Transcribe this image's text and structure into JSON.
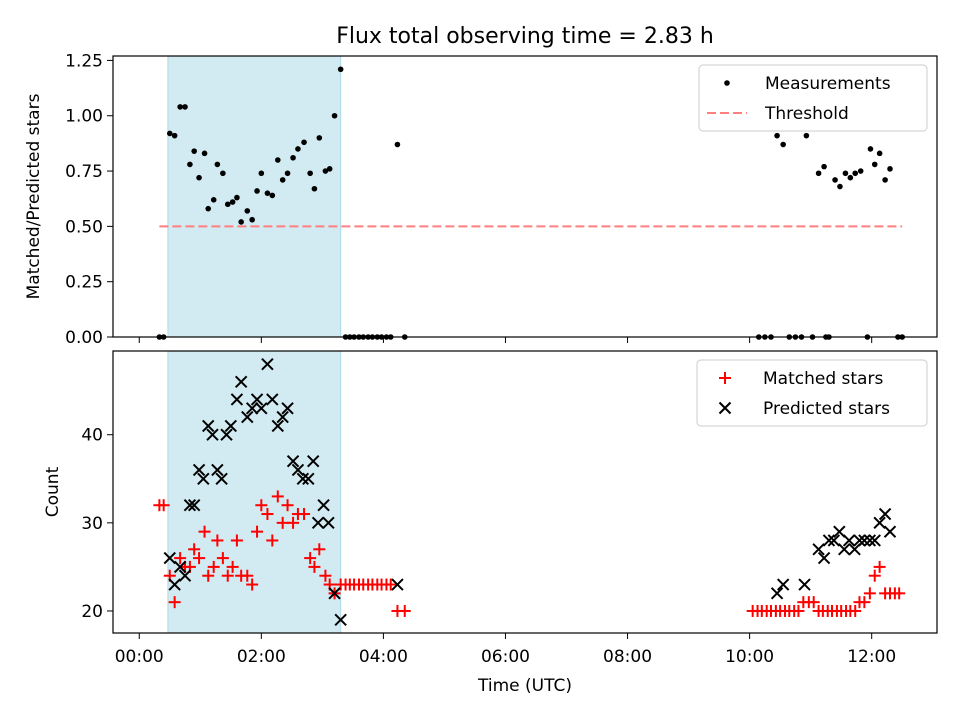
{
  "title": "Flux total observing time = 2.83 h",
  "colors": {
    "measurement": "#000000",
    "threshold": "#ff7f7f",
    "matched": "#ff0000",
    "predicted": "#000000",
    "shade": "#add8e6"
  },
  "chart_data": [
    {
      "type": "scatter",
      "panel": "top",
      "xlabel": "",
      "ylabel": "Matched/Predicted stars",
      "xlim_hours": [
        -0.43,
        13.07
      ],
      "ylim": [
        0,
        1.27
      ],
      "yticks": [
        "0.00",
        "0.25",
        "0.50",
        "0.75",
        "1.00",
        "1.25"
      ],
      "shaded_span_hours": [
        0.47,
        3.3
      ],
      "legend": {
        "placement": "top-right",
        "entries": [
          "Measurements",
          "Threshold"
        ]
      },
      "threshold": {
        "value": 0.5,
        "x_hours": [
          0.33,
          12.5
        ]
      },
      "series": [
        {
          "name": "Measurements",
          "marker": "dot",
          "points": [
            [
              0.33,
              0
            ],
            [
              0.4,
              0
            ],
            [
              0.5,
              0.92
            ],
            [
              0.58,
              0.91
            ],
            [
              0.67,
              1.04
            ],
            [
              0.75,
              1.04
            ],
            [
              0.83,
              0.78
            ],
            [
              0.9,
              0.84
            ],
            [
              0.98,
              0.72
            ],
            [
              1.07,
              0.83
            ],
            [
              1.13,
              0.58
            ],
            [
              1.22,
              0.62
            ],
            [
              1.28,
              0.78
            ],
            [
              1.37,
              0.74
            ],
            [
              1.45,
              0.6
            ],
            [
              1.53,
              0.61
            ],
            [
              1.6,
              0.63
            ],
            [
              1.67,
              0.52
            ],
            [
              1.77,
              0.57
            ],
            [
              1.85,
              0.53
            ],
            [
              1.93,
              0.66
            ],
            [
              2.0,
              0.74
            ],
            [
              2.1,
              0.65
            ],
            [
              2.18,
              0.64
            ],
            [
              2.27,
              0.8
            ],
            [
              2.35,
              0.71
            ],
            [
              2.43,
              0.74
            ],
            [
              2.52,
              0.81
            ],
            [
              2.6,
              0.85
            ],
            [
              2.7,
              0.88
            ],
            [
              2.8,
              0.74
            ],
            [
              2.87,
              0.67
            ],
            [
              2.95,
              0.9
            ],
            [
              3.05,
              0.75
            ],
            [
              3.12,
              0.76
            ],
            [
              3.2,
              1.0
            ],
            [
              3.3,
              1.21
            ],
            [
              3.38,
              0
            ],
            [
              3.45,
              0
            ],
            [
              3.52,
              0
            ],
            [
              3.6,
              0
            ],
            [
              3.67,
              0
            ],
            [
              3.75,
              0
            ],
            [
              3.82,
              0
            ],
            [
              3.9,
              0
            ],
            [
              3.97,
              0
            ],
            [
              4.05,
              0
            ],
            [
              4.12,
              0
            ],
            [
              4.23,
              0.87
            ],
            [
              4.35,
              0
            ],
            [
              10.15,
              0
            ],
            [
              10.25,
              0
            ],
            [
              10.35,
              0
            ],
            [
              10.45,
              0.91
            ],
            [
              10.55,
              0.87
            ],
            [
              10.65,
              0
            ],
            [
              10.75,
              0
            ],
            [
              10.85,
              0
            ],
            [
              10.93,
              0.91
            ],
            [
              11.03,
              0
            ],
            [
              11.25,
              0
            ],
            [
              11.13,
              0.74
            ],
            [
              11.22,
              0.77
            ],
            [
              11.3,
              0
            ],
            [
              11.4,
              0.71
            ],
            [
              11.48,
              0.68
            ],
            [
              11.57,
              0.74
            ],
            [
              11.65,
              0.72
            ],
            [
              11.73,
              0.74
            ],
            [
              11.82,
              0.75
            ],
            [
              11.93,
              0
            ],
            [
              11.98,
              0.85
            ],
            [
              12.05,
              0.78
            ],
            [
              12.13,
              0.83
            ],
            [
              12.22,
              0.71
            ],
            [
              12.3,
              0.76
            ],
            [
              12.43,
              0
            ],
            [
              12.5,
              0
            ]
          ]
        }
      ]
    },
    {
      "type": "scatter",
      "panel": "bottom",
      "xlabel": "Time (UTC)",
      "ylabel": "Count",
      "xlim_hours": [
        -0.43,
        13.07
      ],
      "ylim": [
        17.5,
        49.5
      ],
      "yticks": [
        "20",
        "30",
        "40"
      ],
      "xticks": [
        "00:00",
        "02:00",
        "04:00",
        "06:00",
        "08:00",
        "10:00",
        "12:00"
      ],
      "shaded_span_hours": [
        0.47,
        3.3
      ],
      "legend": {
        "placement": "top-right",
        "entries": [
          "Matched stars",
          "Predicted stars"
        ]
      },
      "series": [
        {
          "name": "Matched stars",
          "marker": "plus",
          "points": [
            [
              0.33,
              32
            ],
            [
              0.4,
              32
            ],
            [
              0.5,
              24
            ],
            [
              0.58,
              21
            ],
            [
              0.67,
              26
            ],
            [
              0.75,
              25
            ],
            [
              0.83,
              25
            ],
            [
              0.9,
              27
            ],
            [
              0.98,
              26
            ],
            [
              1.07,
              29
            ],
            [
              1.13,
              24
            ],
            [
              1.22,
              25
            ],
            [
              1.28,
              28
            ],
            [
              1.37,
              26
            ],
            [
              1.45,
              24
            ],
            [
              1.53,
              25
            ],
            [
              1.6,
              28
            ],
            [
              1.67,
              24
            ],
            [
              1.77,
              24
            ],
            [
              1.85,
              23
            ],
            [
              1.93,
              29
            ],
            [
              2.0,
              32
            ],
            [
              2.1,
              31
            ],
            [
              2.18,
              28
            ],
            [
              2.27,
              33
            ],
            [
              2.35,
              30
            ],
            [
              2.43,
              32
            ],
            [
              2.52,
              30
            ],
            [
              2.6,
              31
            ],
            [
              2.7,
              31
            ],
            [
              2.8,
              26
            ],
            [
              2.87,
              25
            ],
            [
              2.95,
              27
            ],
            [
              3.05,
              24
            ],
            [
              3.12,
              23
            ],
            [
              3.2,
              22
            ],
            [
              3.3,
              23
            ],
            [
              3.38,
              23
            ],
            [
              3.45,
              23
            ],
            [
              3.52,
              23
            ],
            [
              3.6,
              23
            ],
            [
              3.67,
              23
            ],
            [
              3.75,
              23
            ],
            [
              3.82,
              23
            ],
            [
              3.9,
              23
            ],
            [
              3.97,
              23
            ],
            [
              4.05,
              23
            ],
            [
              4.12,
              23
            ],
            [
              4.23,
              20
            ],
            [
              4.35,
              20
            ],
            [
              10.05,
              20
            ],
            [
              10.13,
              20
            ],
            [
              10.2,
              20
            ],
            [
              10.28,
              20
            ],
            [
              10.35,
              20
            ],
            [
              10.43,
              20
            ],
            [
              10.5,
              20
            ],
            [
              10.58,
              20
            ],
            [
              10.65,
              20
            ],
            [
              10.73,
              20
            ],
            [
              10.8,
              20
            ],
            [
              10.88,
              21
            ],
            [
              10.97,
              21
            ],
            [
              11.05,
              21
            ],
            [
              11.13,
              20
            ],
            [
              11.2,
              20
            ],
            [
              11.28,
              20
            ],
            [
              11.35,
              20
            ],
            [
              11.43,
              20
            ],
            [
              11.5,
              20
            ],
            [
              11.58,
              20
            ],
            [
              11.65,
              20
            ],
            [
              11.73,
              20
            ],
            [
              11.8,
              21
            ],
            [
              11.88,
              21
            ],
            [
              11.97,
              22
            ],
            [
              12.05,
              24
            ],
            [
              12.13,
              25
            ],
            [
              12.22,
              22
            ],
            [
              12.3,
              22
            ],
            [
              12.38,
              22
            ],
            [
              12.45,
              22
            ]
          ]
        },
        {
          "name": "Predicted stars",
          "marker": "x",
          "points": [
            [
              0.5,
              26
            ],
            [
              0.58,
              23
            ],
            [
              0.67,
              25
            ],
            [
              0.75,
              24
            ],
            [
              0.83,
              32
            ],
            [
              0.9,
              32
            ],
            [
              0.98,
              36
            ],
            [
              1.05,
              35
            ],
            [
              1.13,
              41
            ],
            [
              1.2,
              40
            ],
            [
              1.28,
              36
            ],
            [
              1.35,
              35
            ],
            [
              1.43,
              40
            ],
            [
              1.5,
              41
            ],
            [
              1.6,
              44
            ],
            [
              1.67,
              46
            ],
            [
              1.77,
              42
            ],
            [
              1.85,
              43
            ],
            [
              1.93,
              44
            ],
            [
              2.0,
              43
            ],
            [
              2.1,
              48
            ],
            [
              2.18,
              44
            ],
            [
              2.27,
              41
            ],
            [
              2.35,
              42
            ],
            [
              2.43,
              43
            ],
            [
              2.52,
              37
            ],
            [
              2.6,
              36
            ],
            [
              2.68,
              35
            ],
            [
              2.77,
              35
            ],
            [
              2.85,
              37
            ],
            [
              2.93,
              30
            ],
            [
              3.02,
              32
            ],
            [
              3.1,
              30
            ],
            [
              3.2,
              22
            ],
            [
              3.3,
              19
            ],
            [
              4.23,
              23
            ],
            [
              10.45,
              22
            ],
            [
              10.55,
              23
            ],
            [
              10.9,
              23
            ],
            [
              11.13,
              27
            ],
            [
              11.22,
              26
            ],
            [
              11.3,
              28
            ],
            [
              11.38,
              28
            ],
            [
              11.47,
              29
            ],
            [
              11.55,
              27
            ],
            [
              11.63,
              28
            ],
            [
              11.72,
              27
            ],
            [
              11.8,
              28
            ],
            [
              11.88,
              28
            ],
            [
              11.97,
              28
            ],
            [
              12.05,
              28
            ],
            [
              12.13,
              30
            ],
            [
              12.22,
              31
            ],
            [
              12.3,
              29
            ]
          ]
        }
      ]
    }
  ]
}
